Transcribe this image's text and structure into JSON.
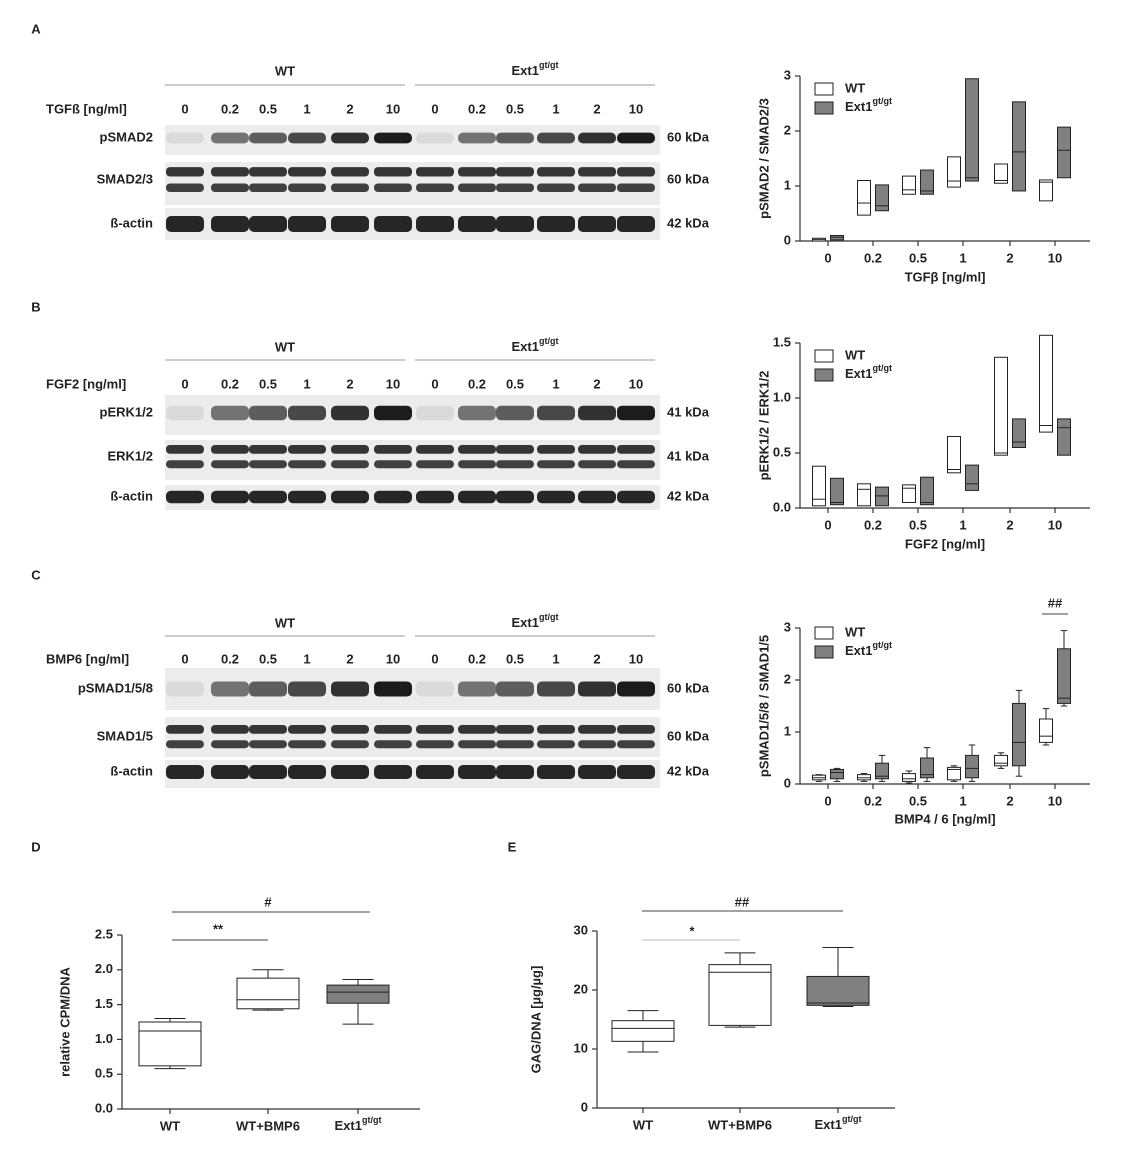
{
  "panel_labels": [
    "A",
    "B",
    "C",
    "D",
    "E"
  ],
  "blots": [
    {
      "treatment": "TGFß [ng/ml]",
      "groups": [
        "WT",
        {
          "base": "Ext1",
          "sup": "gt/gt"
        }
      ],
      "doses": [
        "0",
        "0.2",
        "0.5",
        "1",
        "2",
        "10"
      ],
      "rows": [
        {
          "name": "pSMAD2",
          "kda": "60 kDa"
        },
        {
          "name": "SMAD2/3",
          "kda": "60 kDa"
        },
        {
          "name": "ß-actin",
          "kda": "42 kDa"
        }
      ]
    },
    {
      "treatment": "FGF2 [ng/ml]",
      "groups": [
        "WT",
        {
          "base": "Ext1",
          "sup": "gt/gt"
        }
      ],
      "doses": [
        "0",
        "0.2",
        "0.5",
        "1",
        "2",
        "10"
      ],
      "rows": [
        {
          "name": "pERK1/2",
          "kda": "41 kDa"
        },
        {
          "name": "ERK1/2",
          "kda": "41 kDa"
        },
        {
          "name": "ß-actin",
          "kda": "42 kDa"
        }
      ]
    },
    {
      "treatment": "BMP6 [ng/ml]",
      "groups": [
        "WT",
        {
          "base": "Ext1",
          "sup": "gt/gt"
        }
      ],
      "doses": [
        "0",
        "0.2",
        "0.5",
        "1",
        "2",
        "10"
      ],
      "rows": [
        {
          "name": "pSMAD1/5/8",
          "kda": "60 kDa"
        },
        {
          "name": "SMAD1/5",
          "kda": "60 kDa"
        },
        {
          "name": "ß-actin",
          "kda": "42 kDa"
        }
      ]
    }
  ],
  "chart_data": [
    {
      "type": "box",
      "xlabel": "TGFβ [ng/ml]",
      "ylabel": "pSMAD2 / SMAD2/3",
      "categories": [
        "0",
        "0.2",
        "0.5",
        "1",
        "2",
        "10"
      ],
      "ylim": [
        0,
        3
      ],
      "yticks": [
        0,
        1,
        2,
        3
      ],
      "series": [
        {
          "name": "WT",
          "color": "#ffffff",
          "values": [
            [
              0,
              0.03,
              0.05
            ],
            [
              0.47,
              0.69,
              1.1
            ],
            [
              0.85,
              0.93,
              1.18
            ],
            [
              0.98,
              1.09,
              1.53
            ],
            [
              1.05,
              1.1,
              1.4
            ],
            [
              0.73,
              1.07,
              1.11
            ]
          ]
        },
        {
          "name": {
            "base": "Ext1",
            "sup": "gt/gt"
          },
          "color": "#808080",
          "values": [
            [
              0.02,
              0.07,
              0.1
            ],
            [
              0.55,
              0.64,
              1.02
            ],
            [
              0.85,
              0.91,
              1.29
            ],
            [
              1.09,
              1.15,
              2.95
            ],
            [
              0.91,
              1.62,
              2.53
            ],
            [
              1.15,
              1.65,
              2.07
            ]
          ]
        }
      ]
    },
    {
      "type": "box",
      "xlabel": "FGF2 [ng/ml]",
      "ylabel": "pERK1/2 / ERK1/2",
      "categories": [
        "0",
        "0.2",
        "0.5",
        "1",
        "2",
        "10"
      ],
      "ylim": [
        0,
        1.5
      ],
      "yticks": [
        {
          "value": 0,
          "label": "0.0"
        },
        0.5,
        {
          "value": 1,
          "label": "1.0"
        },
        1.5
      ],
      "series": [
        {
          "name": "WT",
          "color": "#ffffff",
          "values": [
            [
              0.02,
              0.08,
              0.38
            ],
            [
              0.02,
              0.17,
              0.22
            ],
            [
              0.05,
              0.18,
              0.21
            ],
            [
              0.32,
              0.35,
              0.65
            ],
            [
              0.48,
              0.5,
              1.37
            ],
            [
              0.69,
              0.75,
              1.57
            ]
          ]
        },
        {
          "name": {
            "base": "Ext1",
            "sup": "gt/gt"
          },
          "color": "#808080",
          "values": [
            [
              0.03,
              0.05,
              0.27
            ],
            [
              0.02,
              0.11,
              0.19
            ],
            [
              0.03,
              0.05,
              0.28
            ],
            [
              0.16,
              0.22,
              0.39
            ],
            [
              0.55,
              0.6,
              0.81
            ],
            [
              0.48,
              0.73,
              0.81
            ]
          ]
        }
      ]
    },
    {
      "type": "box",
      "xlabel": "BMP4 / 6 [ng/ml]",
      "ylabel": "pSMAD1/5/8 / SMAD1/5",
      "categories": [
        "0",
        "0.2",
        "0.5",
        "1",
        "2",
        "10"
      ],
      "ylim": [
        0,
        3
      ],
      "yticks": [
        0,
        1,
        2,
        3
      ],
      "annotations": [
        "##"
      ],
      "series": [
        {
          "name": "WT",
          "color": "#ffffff",
          "values": [
            [
              0.05,
              0.08,
              0.12,
              0.17,
              0.18
            ],
            [
              0.05,
              0.08,
              0.12,
              0.18,
              0.2
            ],
            [
              0.02,
              0.05,
              0.1,
              0.2,
              0.25
            ],
            [
              0.05,
              0.08,
              0.28,
              0.32,
              0.35
            ],
            [
              0.3,
              0.35,
              0.4,
              0.55,
              0.6
            ],
            [
              0.75,
              0.8,
              0.92,
              1.25,
              1.45
            ]
          ]
        },
        {
          "name": {
            "base": "Ext1",
            "sup": "gt/gt"
          },
          "color": "#808080",
          "values": [
            [
              0.05,
              0.1,
              0.22,
              0.28,
              0.3
            ],
            [
              0.05,
              0.1,
              0.15,
              0.4,
              0.55
            ],
            [
              0.05,
              0.12,
              0.18,
              0.5,
              0.7
            ],
            [
              0.05,
              0.12,
              0.3,
              0.55,
              0.75
            ],
            [
              0.15,
              0.35,
              0.8,
              1.55,
              1.8
            ],
            [
              1.5,
              1.55,
              1.65,
              2.6,
              2.95
            ]
          ]
        }
      ]
    },
    {
      "type": "box",
      "ylabel": "relative CPM/DNA",
      "categories": [
        "WT",
        "WT+BMP6",
        {
          "base": "Ext1",
          "sup": "gt/gt"
        }
      ],
      "ylim": [
        0,
        2.5
      ],
      "yticks": [
        {
          "value": 0,
          "label": "0.0"
        },
        0.5,
        {
          "value": 1,
          "label": "1.0"
        },
        1.5,
        {
          "value": 2,
          "label": "2.0"
        },
        2.5
      ],
      "annotations": [
        "**",
        "#"
      ],
      "colors": [
        "#ffffff",
        "#ffffff",
        "#808080"
      ],
      "values": [
        [
          0.58,
          0.62,
          1.12,
          1.25,
          1.3
        ],
        [
          1.42,
          1.44,
          1.57,
          1.88,
          2.0
        ],
        [
          1.22,
          1.52,
          1.68,
          1.78,
          1.86
        ]
      ]
    },
    {
      "type": "box",
      "ylabel": "GAG/DNA [µg/µg]",
      "categories": [
        "WT",
        "WT+BMP6",
        {
          "base": "Ext1",
          "sup": "gt/gt"
        }
      ],
      "ylim": [
        0,
        30
      ],
      "yticks": [
        0,
        10,
        20,
        30
      ],
      "annotations": [
        "*",
        "##"
      ],
      "colors": [
        "#ffffff",
        "#ffffff",
        "#808080"
      ],
      "values": [
        [
          9.5,
          11.3,
          13.5,
          14.8,
          16.5
        ],
        [
          13.7,
          14,
          23,
          24.3,
          26.3
        ],
        [
          17.2,
          17.4,
          17.8,
          22.3,
          27.2
        ]
      ]
    }
  ]
}
